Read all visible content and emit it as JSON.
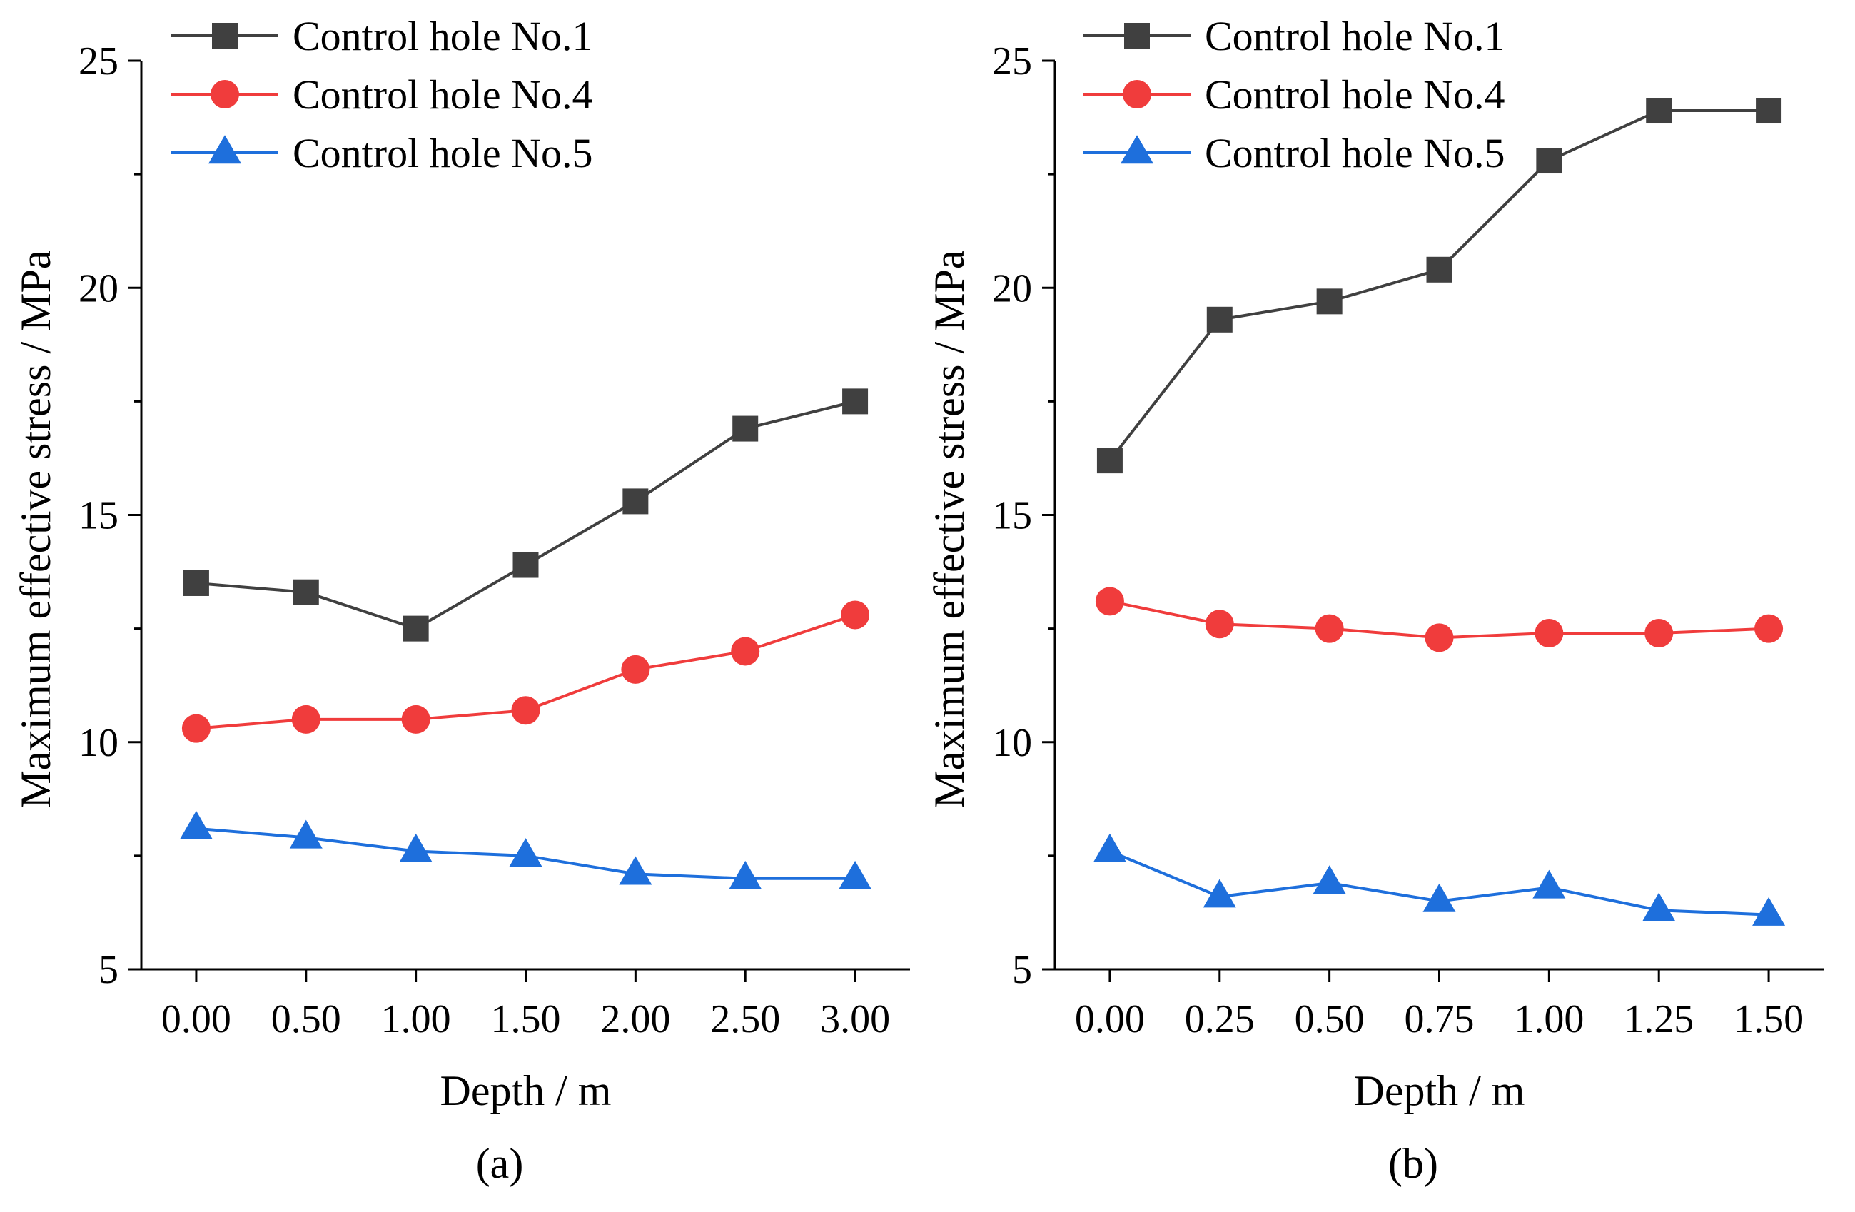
{
  "chart_data": [
    {
      "type": "line",
      "panel_label": "(a)",
      "xlabel": "Depth / m",
      "ylabel": "Maximum effective stress / MPa",
      "x": [
        0.0,
        0.5,
        1.0,
        1.5,
        2.0,
        2.5,
        3.0
      ],
      "xtick_labels": [
        "0.00",
        "0.50",
        "1.00",
        "1.50",
        "2.00",
        "2.50",
        "3.00"
      ],
      "xlim": [
        -0.25,
        3.25
      ],
      "ylim": [
        5,
        25
      ],
      "yticks": [
        5,
        10,
        15,
        20,
        25
      ],
      "grid": false,
      "legend_position": "top-left",
      "series": [
        {
          "name": "Control hole No.1",
          "color": "#404040",
          "marker": "square",
          "values": [
            13.5,
            13.3,
            12.5,
            13.9,
            15.3,
            16.9,
            17.5
          ]
        },
        {
          "name": "Control hole No.4",
          "color": "#f03c3c",
          "marker": "circle",
          "values": [
            10.3,
            10.5,
            10.5,
            10.7,
            11.6,
            12.0,
            12.8
          ]
        },
        {
          "name": "Control hole No.5",
          "color": "#1e6fdc",
          "marker": "triangle",
          "values": [
            8.1,
            7.9,
            7.6,
            7.5,
            7.1,
            7.0,
            7.0
          ]
        }
      ]
    },
    {
      "type": "line",
      "panel_label": "(b)",
      "xlabel": "Depth / m",
      "ylabel": "Maximum effective stress / MPa",
      "x": [
        0.0,
        0.25,
        0.5,
        0.75,
        1.0,
        1.25,
        1.5
      ],
      "xtick_labels": [
        "0.00",
        "0.25",
        "0.50",
        "0.75",
        "1.00",
        "1.25",
        "1.50"
      ],
      "xlim": [
        -0.125,
        1.625
      ],
      "ylim": [
        5,
        25
      ],
      "yticks": [
        5,
        10,
        15,
        20,
        25
      ],
      "grid": false,
      "legend_position": "top-left",
      "series": [
        {
          "name": "Control hole No.1",
          "color": "#404040",
          "marker": "square",
          "values": [
            16.2,
            19.3,
            19.7,
            20.4,
            22.8,
            23.9,
            23.9
          ]
        },
        {
          "name": "Control hole No.4",
          "color": "#f03c3c",
          "marker": "circle",
          "values": [
            13.1,
            12.6,
            12.5,
            12.3,
            12.4,
            12.4,
            12.5
          ]
        },
        {
          "name": "Control hole No.5",
          "color": "#1e6fdc",
          "marker": "triangle",
          "values": [
            7.6,
            6.6,
            6.9,
            6.5,
            6.8,
            6.3,
            6.2
          ]
        }
      ]
    }
  ]
}
